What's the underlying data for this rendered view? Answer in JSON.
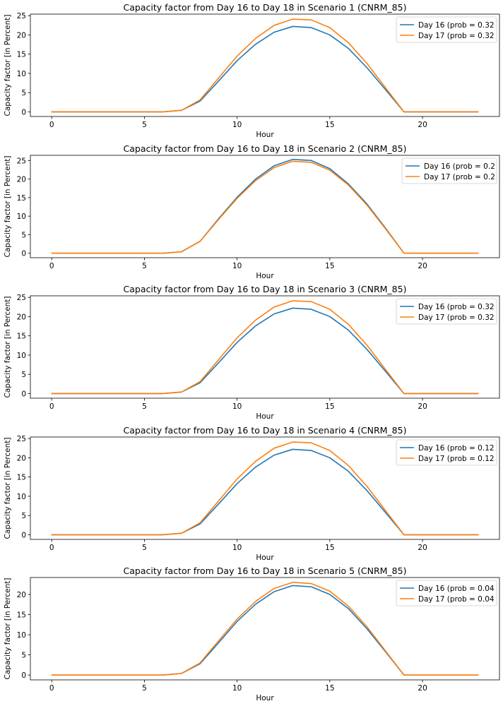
{
  "colors": {
    "series1": "#1f77b4",
    "series2": "#ff7f0e"
  },
  "chart_data": [
    {
      "type": "line",
      "title": "Capacity factor from Day 16 to Day 18 in Scenario 1 (CNRM_85)",
      "xlabel": "Hour",
      "ylabel": "Capacity factor [in Percent]",
      "xlim": [
        -1.15,
        24.15
      ],
      "ylim": [
        -1.2,
        25.4
      ],
      "xticks": [
        0,
        5,
        10,
        15,
        20
      ],
      "yticks": [
        0,
        5,
        10,
        15,
        20,
        25
      ],
      "x": [
        0,
        1,
        2,
        3,
        4,
        5,
        6,
        7,
        8,
        9,
        10,
        11,
        12,
        13,
        14,
        15,
        16,
        17,
        18,
        19,
        20,
        21,
        22,
        23
      ],
      "legend_position": "upper right",
      "series": [
        {
          "name": "Day 16 (prob = 0.32",
          "values": [
            0,
            0,
            0,
            0,
            0,
            0,
            0,
            0.4,
            2.8,
            8,
            13.3,
            17.6,
            20.7,
            22.2,
            21.9,
            20,
            16.5,
            11.5,
            5.8,
            0,
            0,
            0,
            0,
            0
          ]
        },
        {
          "name": "Day 17 (prob = 0.32",
          "values": [
            0,
            0,
            0,
            0,
            0,
            0,
            0,
            0.4,
            3.1,
            8.8,
            14.5,
            19.1,
            22.5,
            24.1,
            23.9,
            21.9,
            18,
            12.6,
            6.3,
            0,
            0,
            0,
            0,
            0
          ]
        }
      ]
    },
    {
      "type": "line",
      "title": "Capacity factor from Day 16 to Day 18 in Scenario 2 (CNRM_85)",
      "xlabel": "Hour",
      "ylabel": "Capacity factor [in Percent]",
      "xlim": [
        -1.15,
        24.15
      ],
      "ylim": [
        -1.2,
        26.4
      ],
      "xticks": [
        0,
        5,
        10,
        15,
        20
      ],
      "yticks": [
        0,
        5,
        10,
        15,
        20,
        25
      ],
      "x": [
        0,
        1,
        2,
        3,
        4,
        5,
        6,
        7,
        8,
        9,
        10,
        11,
        12,
        13,
        14,
        15,
        16,
        17,
        18,
        19,
        20,
        21,
        22,
        23
      ],
      "legend_position": "upper right",
      "series": [
        {
          "name": "Day 16 (prob = 0.2",
          "values": [
            0,
            0,
            0,
            0,
            0,
            0,
            0,
            0.4,
            3.2,
            9.3,
            15.1,
            20,
            23.6,
            25.3,
            25,
            22.8,
            18.7,
            13.3,
            6.8,
            0,
            0,
            0,
            0,
            0
          ]
        },
        {
          "name": "Day 17 (prob = 0.2",
          "values": [
            0,
            0,
            0,
            0,
            0,
            0,
            0,
            0.4,
            3.2,
            9.1,
            14.8,
            19.6,
            23.1,
            24.8,
            24.5,
            22.4,
            18.4,
            13,
            6.6,
            0,
            0,
            0,
            0,
            0
          ]
        }
      ]
    },
    {
      "type": "line",
      "title": "Capacity factor from Day 16 to Day 18 in Scenario 3 (CNRM_85)",
      "xlabel": "Hour",
      "ylabel": "Capacity factor [in Percent]",
      "xlim": [
        -1.15,
        24.15
      ],
      "ylim": [
        -1.2,
        25.4
      ],
      "xticks": [
        0,
        5,
        10,
        15,
        20
      ],
      "yticks": [
        0,
        5,
        10,
        15,
        20,
        25
      ],
      "x": [
        0,
        1,
        2,
        3,
        4,
        5,
        6,
        7,
        8,
        9,
        10,
        11,
        12,
        13,
        14,
        15,
        16,
        17,
        18,
        19,
        20,
        21,
        22,
        23
      ],
      "legend_position": "upper right",
      "series": [
        {
          "name": "Day 16 (prob = 0.32",
          "values": [
            0,
            0,
            0,
            0,
            0,
            0,
            0,
            0.4,
            2.8,
            8,
            13.3,
            17.6,
            20.7,
            22.2,
            21.9,
            20,
            16.5,
            11.5,
            5.8,
            0,
            0,
            0,
            0,
            0
          ]
        },
        {
          "name": "Day 17 (prob = 0.32",
          "values": [
            0,
            0,
            0,
            0,
            0,
            0,
            0,
            0.4,
            3.1,
            8.8,
            14.5,
            19.1,
            22.5,
            24.1,
            23.9,
            21.9,
            18,
            12.6,
            6.3,
            0,
            0,
            0,
            0,
            0
          ]
        }
      ]
    },
    {
      "type": "line",
      "title": "Capacity factor from Day 16 to Day 18 in Scenario 4 (CNRM_85)",
      "xlabel": "Hour",
      "ylabel": "Capacity factor [in Percent]",
      "xlim": [
        -1.15,
        24.15
      ],
      "ylim": [
        -1.2,
        25.4
      ],
      "xticks": [
        0,
        5,
        10,
        15,
        20
      ],
      "yticks": [
        0,
        5,
        10,
        15,
        20,
        25
      ],
      "x": [
        0,
        1,
        2,
        3,
        4,
        5,
        6,
        7,
        8,
        9,
        10,
        11,
        12,
        13,
        14,
        15,
        16,
        17,
        18,
        19,
        20,
        21,
        22,
        23
      ],
      "legend_position": "upper right",
      "series": [
        {
          "name": "Day 16 (prob = 0.12",
          "values": [
            0,
            0,
            0,
            0,
            0,
            0,
            0,
            0.4,
            2.8,
            8,
            13.3,
            17.6,
            20.7,
            22.2,
            21.9,
            20,
            16.5,
            11.5,
            5.8,
            0,
            0,
            0,
            0,
            0
          ]
        },
        {
          "name": "Day 17 (prob = 0.12",
          "values": [
            0,
            0,
            0,
            0,
            0,
            0,
            0,
            0.4,
            3.1,
            8.8,
            14.5,
            19.1,
            22.5,
            24.1,
            23.9,
            21.9,
            18,
            12.6,
            6.3,
            0,
            0,
            0,
            0,
            0
          ]
        }
      ]
    },
    {
      "type": "line",
      "title": "Capacity factor from Day 16 to Day 18 in Scenario 5 (CNRM_85)",
      "xlabel": "Hour",
      "ylabel": "Capacity factor [in Percent]",
      "xlim": [
        -1.15,
        24.15
      ],
      "ylim": [
        -1.2,
        24.2
      ],
      "xticks": [
        0,
        5,
        10,
        15,
        20
      ],
      "yticks": [
        0,
        5,
        10,
        15,
        20
      ],
      "x": [
        0,
        1,
        2,
        3,
        4,
        5,
        6,
        7,
        8,
        9,
        10,
        11,
        12,
        13,
        14,
        15,
        16,
        17,
        18,
        19,
        20,
        21,
        22,
        23
      ],
      "legend_position": "upper right",
      "series": [
        {
          "name": "Day 16 (prob = 0.04",
          "values": [
            0,
            0,
            0,
            0,
            0,
            0,
            0,
            0.4,
            2.8,
            8,
            13.3,
            17.6,
            20.7,
            22.2,
            21.9,
            20,
            16.5,
            11.5,
            5.8,
            0,
            0,
            0,
            0,
            0
          ]
        },
        {
          "name": "Day 17 (prob = 0.04",
          "values": [
            0,
            0,
            0,
            0,
            0,
            0,
            0,
            0.4,
            3,
            8.5,
            13.9,
            18.3,
            21.5,
            23,
            22.7,
            20.8,
            17.1,
            12,
            6,
            0,
            0,
            0,
            0,
            0
          ]
        }
      ]
    }
  ]
}
